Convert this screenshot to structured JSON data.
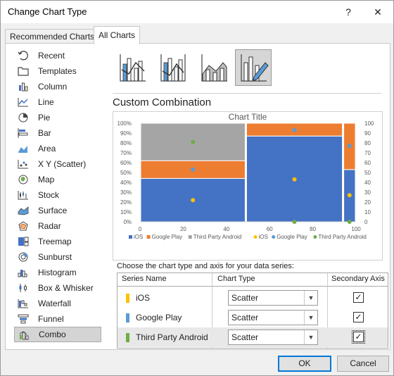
{
  "window": {
    "title": "Change Chart Type",
    "help_label": "?",
    "close_label": "✕"
  },
  "tabs": [
    {
      "label": "Recommended Charts"
    },
    {
      "label": "All Charts"
    }
  ],
  "sidebar": {
    "items": [
      {
        "label": "Recent",
        "icon": "recent-icon"
      },
      {
        "label": "Templates",
        "icon": "templates-icon"
      },
      {
        "label": "Column",
        "icon": "column-chart-icon"
      },
      {
        "label": "Line",
        "icon": "line-chart-icon"
      },
      {
        "label": "Pie",
        "icon": "pie-chart-icon"
      },
      {
        "label": "Bar",
        "icon": "bar-chart-icon"
      },
      {
        "label": "Area",
        "icon": "area-chart-icon"
      },
      {
        "label": "X Y (Scatter)",
        "icon": "scatter-chart-icon"
      },
      {
        "label": "Map",
        "icon": "map-chart-icon"
      },
      {
        "label": "Stock",
        "icon": "stock-chart-icon"
      },
      {
        "label": "Surface",
        "icon": "surface-chart-icon"
      },
      {
        "label": "Radar",
        "icon": "radar-chart-icon"
      },
      {
        "label": "Treemap",
        "icon": "treemap-chart-icon"
      },
      {
        "label": "Sunburst",
        "icon": "sunburst-chart-icon"
      },
      {
        "label": "Histogram",
        "icon": "histogram-chart-icon"
      },
      {
        "label": "Box & Whisker",
        "icon": "box-whisker-chart-icon"
      },
      {
        "label": "Waterfall",
        "icon": "waterfall-chart-icon"
      },
      {
        "label": "Funnel",
        "icon": "funnel-chart-icon"
      },
      {
        "label": "Combo",
        "icon": "combo-chart-icon"
      }
    ],
    "selected": "Combo"
  },
  "combo_types": [
    {
      "icon": "clustered-column-line-icon"
    },
    {
      "icon": "clustered-column-line-secondary-axis-icon"
    },
    {
      "icon": "stacked-area-clustered-column-icon"
    },
    {
      "icon": "custom-combination-icon",
      "selected": true
    }
  ],
  "section_title": "Custom Combination",
  "chart_data": {
    "type": "bar",
    "title": "Chart Title",
    "primary_axis": {
      "ticks": [
        "0%",
        "10%",
        "20%",
        "30%",
        "40%",
        "50%",
        "60%",
        "70%",
        "80%",
        "90%",
        "100%"
      ]
    },
    "secondary_axis": {
      "ticks": [
        "0",
        "10",
        "20",
        "30",
        "40",
        "50",
        "60",
        "70",
        "80",
        "90",
        "100"
      ]
    },
    "x_ticks": [
      "0",
      "20",
      "40",
      "60",
      "80",
      "100"
    ],
    "xlim": [
      0,
      100
    ],
    "ylim_secondary": [
      0,
      100
    ],
    "columns": [
      {
        "x_start": 0,
        "x_end": 49,
        "segments": [
          {
            "series": "iOS",
            "value": 0.44
          },
          {
            "series": "Google Play",
            "value": 0.18
          },
          {
            "series": "Third Party Android",
            "value": 0.38
          }
        ]
      },
      {
        "x_start": 49,
        "x_end": 94,
        "segments": [
          {
            "series": "iOS",
            "value": 0.87
          },
          {
            "series": "Google Play",
            "value": 0.13
          },
          {
            "series": "Third Party Android",
            "value": 0.0
          }
        ]
      },
      {
        "x_start": 94,
        "x_end": 100,
        "segments": [
          {
            "series": "iOS",
            "value": 0.53
          },
          {
            "series": "Google Play",
            "value": 0.47
          },
          {
            "series": "Third Party Android",
            "value": 0.0
          }
        ]
      }
    ],
    "scatter_series": [
      {
        "name": "iOS",
        "points": [
          [
            24.5,
            22
          ],
          [
            71.5,
            43
          ],
          [
            97,
            27
          ]
        ]
      },
      {
        "name": "Google Play",
        "points": [
          [
            24.5,
            53
          ],
          [
            71.5,
            93
          ],
          [
            97,
            77
          ]
        ]
      },
      {
        "name": "Third Party Android",
        "points": [
          [
            24.5,
            81
          ],
          [
            71.5,
            0
          ],
          [
            97,
            0
          ]
        ]
      }
    ],
    "legend": [
      "iOS",
      "Google Play",
      "Third Party Android",
      "iOS",
      "Google Play",
      "Third Party Android"
    ],
    "legend_position": "bottom",
    "colors": {
      "iOS_bar": "#4472c4",
      "GooglePlay_bar": "#ed7d31",
      "ThirdParty_bar": "#a5a5a5",
      "iOS_point": "#ffc000",
      "GooglePlay_point": "#5b9bd5",
      "ThirdParty_point": "#70ad47"
    }
  },
  "choose_label": "Choose the chart type and axis for your data series:",
  "grid": {
    "headers": {
      "name": "Series Name",
      "type": "Chart Type",
      "axis": "Secondary Axis"
    },
    "rows": [
      {
        "name": "iOS",
        "color": "#ffc000",
        "type": "Scatter",
        "secondary": true
      },
      {
        "name": "Google Play",
        "color": "#5b9bd5",
        "type": "Scatter",
        "secondary": true
      },
      {
        "name": "Third Party Android",
        "color": "#70ad47",
        "type": "Scatter",
        "secondary": true
      }
    ]
  },
  "buttons": {
    "ok": "OK",
    "cancel": "Cancel"
  }
}
